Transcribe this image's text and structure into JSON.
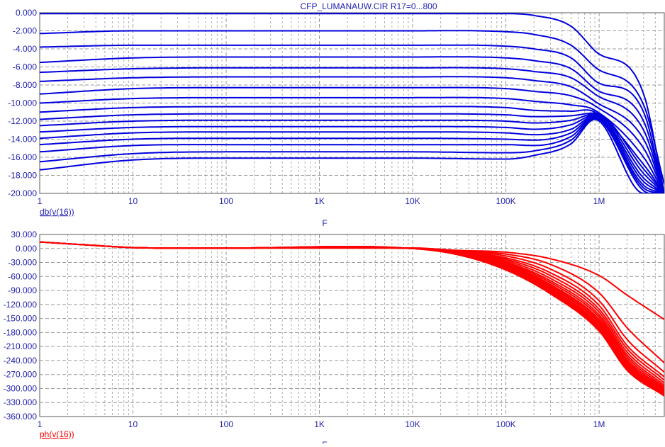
{
  "window": {
    "title": "CFP_LUMANAUW.CIR R17=0...800"
  },
  "colors": {
    "gain": "#0000dd",
    "phase": "#ff0000",
    "axis_text": "#1f1fb0",
    "grid": "#9a9a9a",
    "frame": "#5a5a5a"
  },
  "chart_data": [
    {
      "id": "gain",
      "type": "line",
      "title": "CFP_LUMANAUW.CIR R17=0...800",
      "xlabel": "F",
      "ylabel": "db(v(16))",
      "xscale": "log",
      "xlim": [
        1,
        5000000
      ],
      "ylim": [
        -20,
        0
      ],
      "grid": true,
      "x_tick_values": [
        1,
        10,
        100,
        1000,
        10000,
        100000,
        1000000
      ],
      "x_tick_labels": [
        "1",
        "10",
        "100",
        "1K",
        "10K",
        "100K",
        "1M"
      ],
      "y_tick_values": [
        0,
        -2,
        -4,
        -6,
        -8,
        -10,
        -12,
        -14,
        -16,
        -18,
        -20
      ],
      "y_tick_labels": [
        "0.000",
        "-2.000",
        "-4.000",
        "-6.000",
        "-8.000",
        "-10.000",
        "-12.000",
        "-14.000",
        "-16.000",
        "-18.000",
        "-20.000"
      ],
      "series_note": "17 curves",
      "series": [
        {
          "values": [
            -0.1,
            -0.1,
            -0.1,
            -0.1,
            -0.1,
            -0.1,
            -0.3,
            -1.5,
            -4.2,
            -9.0,
            -20.0
          ]
        },
        {
          "values": [
            -2.3,
            -2.0,
            -2.0,
            -2.0,
            -2.0,
            -2.1,
            -2.4,
            -3.6,
            -6.0,
            -10.2,
            -19.0
          ]
        },
        {
          "values": [
            -3.8,
            -3.6,
            -3.6,
            -3.6,
            -3.6,
            -3.7,
            -4.0,
            -5.0,
            -7.5,
            -11.0,
            -20.0
          ]
        },
        {
          "values": [
            -5.5,
            -5.0,
            -4.9,
            -4.9,
            -4.9,
            -5.0,
            -5.3,
            -6.2,
            -8.4,
            -12.0,
            -20.0
          ]
        },
        {
          "values": [
            -6.6,
            -6.2,
            -6.1,
            -6.1,
            -6.1,
            -6.2,
            -6.5,
            -7.2,
            -9.0,
            -13.0,
            -20.0
          ]
        },
        {
          "values": [
            -7.6,
            -7.2,
            -7.1,
            -7.1,
            -7.1,
            -7.2,
            -7.5,
            -8.2,
            -9.8,
            -14.0,
            -20.0
          ]
        },
        {
          "values": [
            -9.0,
            -8.4,
            -8.3,
            -8.3,
            -8.3,
            -8.4,
            -8.7,
            -9.2,
            -10.3,
            -15.0,
            -20.0
          ]
        },
        {
          "values": [
            -10.0,
            -9.5,
            -9.4,
            -9.4,
            -9.4,
            -9.5,
            -9.8,
            -10.2,
            -10.8,
            -16.0,
            -20.0
          ]
        },
        {
          "values": [
            -11.0,
            -10.5,
            -10.4,
            -10.4,
            -10.4,
            -10.5,
            -10.8,
            -10.9,
            -11.0,
            -16.8,
            -20.0
          ]
        },
        {
          "values": [
            -11.8,
            -11.3,
            -11.2,
            -11.2,
            -11.2,
            -11.3,
            -11.5,
            -11.4,
            -11.1,
            -17.3,
            -20.0
          ]
        },
        {
          "values": [
            -12.5,
            -12.0,
            -11.9,
            -11.9,
            -11.9,
            -12.0,
            -12.2,
            -11.9,
            -11.2,
            -17.8,
            -20.0
          ]
        },
        {
          "values": [
            -13.2,
            -12.7,
            -12.6,
            -12.6,
            -12.6,
            -12.7,
            -12.9,
            -12.4,
            -11.3,
            -18.3,
            -20.0
          ]
        },
        {
          "values": [
            -13.9,
            -13.3,
            -13.2,
            -13.2,
            -13.2,
            -13.3,
            -13.5,
            -12.9,
            -11.4,
            -18.7,
            -20.0
          ]
        },
        {
          "values": [
            -14.6,
            -14.0,
            -13.9,
            -13.9,
            -13.9,
            -14.0,
            -14.1,
            -13.3,
            -11.5,
            -19.1,
            -20.0
          ]
        },
        {
          "values": [
            -15.4,
            -14.7,
            -14.6,
            -14.6,
            -14.6,
            -14.6,
            -14.7,
            -13.7,
            -11.6,
            -19.4,
            -20.0
          ]
        },
        {
          "values": [
            -16.5,
            -15.6,
            -15.4,
            -15.4,
            -15.4,
            -15.5,
            -15.3,
            -14.1,
            -11.7,
            -19.7,
            -20.0
          ]
        },
        {
          "values": [
            -17.4,
            -16.3,
            -16.1,
            -16.1,
            -16.1,
            -16.2,
            -15.8,
            -14.5,
            -11.8,
            -20.0,
            -20.0
          ]
        }
      ],
      "x": [
        1,
        10,
        100,
        1000,
        10000,
        100000,
        200000,
        500000,
        900000,
        3000000,
        5000000
      ]
    },
    {
      "id": "phase",
      "type": "line",
      "xlabel": "F",
      "ylabel": "ph(v(16))",
      "xscale": "log",
      "xlim": [
        1,
        5000000
      ],
      "ylim": [
        -360,
        30
      ],
      "grid": true,
      "x_tick_values": [
        1,
        10,
        100,
        1000,
        10000,
        100000,
        1000000
      ],
      "x_tick_labels": [
        "1",
        "10",
        "100",
        "1K",
        "10K",
        "100K",
        "1M"
      ],
      "y_tick_values": [
        30,
        0,
        -30,
        -60,
        -90,
        -120,
        -150,
        -180,
        -210,
        -240,
        -270,
        -300,
        -330,
        -360
      ],
      "y_tick_labels": [
        "30.000",
        "0.000",
        "-30.000",
        "-60.000",
        "-90.000",
        "-120.000",
        "-150.000",
        "-180.000",
        "-210.000",
        "-240.000",
        "-270.000",
        "-300.000",
        "-330.000",
        "-360.000"
      ],
      "x": [
        1,
        3,
        10,
        100,
        10000,
        30000,
        100000,
        300000,
        1000000,
        2000000,
        5000000
      ],
      "series": [
        {
          "values": [
            14,
            8,
            2,
            1,
            1,
            -4,
            -8,
            -22,
            -58,
            -100,
            -152
          ]
        },
        {
          "values": [
            14,
            8,
            2,
            1,
            1,
            -5,
            -12,
            -34,
            -95,
            -170,
            -245
          ]
        },
        {
          "values": [
            14,
            8,
            2,
            1,
            0,
            -6,
            -16,
            -44,
            -112,
            -195,
            -265
          ]
        },
        {
          "values": [
            14,
            8,
            2,
            1,
            0,
            -7,
            -20,
            -52,
            -122,
            -208,
            -275
          ]
        },
        {
          "values": [
            14,
            8,
            2,
            1,
            0,
            -7,
            -23,
            -58,
            -130,
            -215,
            -282
          ]
        },
        {
          "values": [
            14,
            8,
            2,
            1,
            0,
            -8,
            -26,
            -64,
            -136,
            -222,
            -288
          ]
        },
        {
          "values": [
            14,
            8,
            2,
            1,
            0,
            -8,
            -29,
            -69,
            -142,
            -228,
            -293
          ]
        },
        {
          "values": [
            14,
            8,
            2,
            1,
            0,
            -9,
            -31,
            -73,
            -147,
            -233,
            -297
          ]
        },
        {
          "values": [
            14,
            8,
            2,
            1,
            0,
            -9,
            -33,
            -77,
            -152,
            -238,
            -300
          ]
        },
        {
          "values": [
            14,
            8,
            2,
            1,
            0,
            -10,
            -35,
            -80,
            -156,
            -242,
            -303
          ]
        },
        {
          "values": [
            14,
            8,
            2,
            1,
            0,
            -10,
            -37,
            -83,
            -160,
            -246,
            -306
          ]
        },
        {
          "values": [
            14,
            8,
            2,
            1,
            0,
            -11,
            -39,
            -86,
            -164,
            -249,
            -308
          ]
        },
        {
          "values": [
            14,
            8,
            2,
            1,
            0,
            -11,
            -40,
            -88,
            -167,
            -252,
            -310
          ]
        },
        {
          "values": [
            14,
            8,
            2,
            1,
            0,
            -12,
            -42,
            -91,
            -170,
            -255,
            -312
          ]
        },
        {
          "values": [
            14,
            8,
            2,
            1,
            0,
            -12,
            -43,
            -93,
            -172,
            -257,
            -313
          ]
        },
        {
          "values": [
            14,
            8,
            2,
            1,
            0,
            -13,
            -45,
            -95,
            -175,
            -259,
            -315
          ]
        },
        {
          "values": [
            14,
            8,
            2,
            1,
            0,
            -13,
            -46,
            -97,
            -177,
            -261,
            -316
          ]
        }
      ]
    }
  ]
}
